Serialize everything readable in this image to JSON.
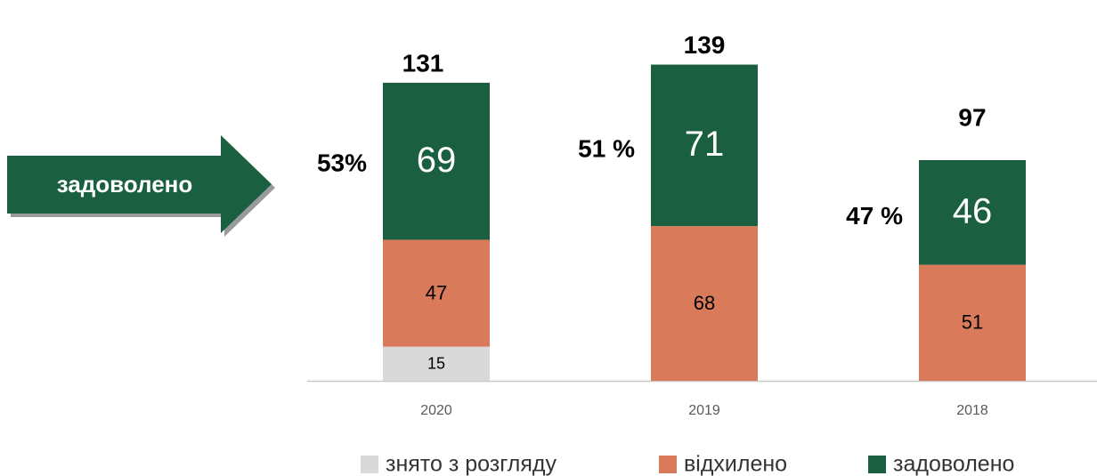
{
  "chart_data": {
    "type": "stacked_bar",
    "categories": [
      "2020",
      "2019",
      "2018"
    ],
    "series": [
      {
        "name": "знято з розгляду",
        "color": "#d9d9d9",
        "values": [
          15,
          null,
          null
        ]
      },
      {
        "name": "відхилено",
        "color": "#d97b5a",
        "values": [
          47,
          68,
          51
        ]
      },
      {
        "name": "задоволено",
        "color": "#1a6040",
        "values": [
          69,
          71,
          46
        ]
      }
    ],
    "totals": [
      131,
      139,
      97
    ],
    "shares": [
      {
        "value": 53,
        "label": "53%"
      },
      {
        "value": 51,
        "label": "51 %"
      },
      {
        "value": 47,
        "label": "47 %"
      }
    ],
    "annotation": "задоволено"
  }
}
